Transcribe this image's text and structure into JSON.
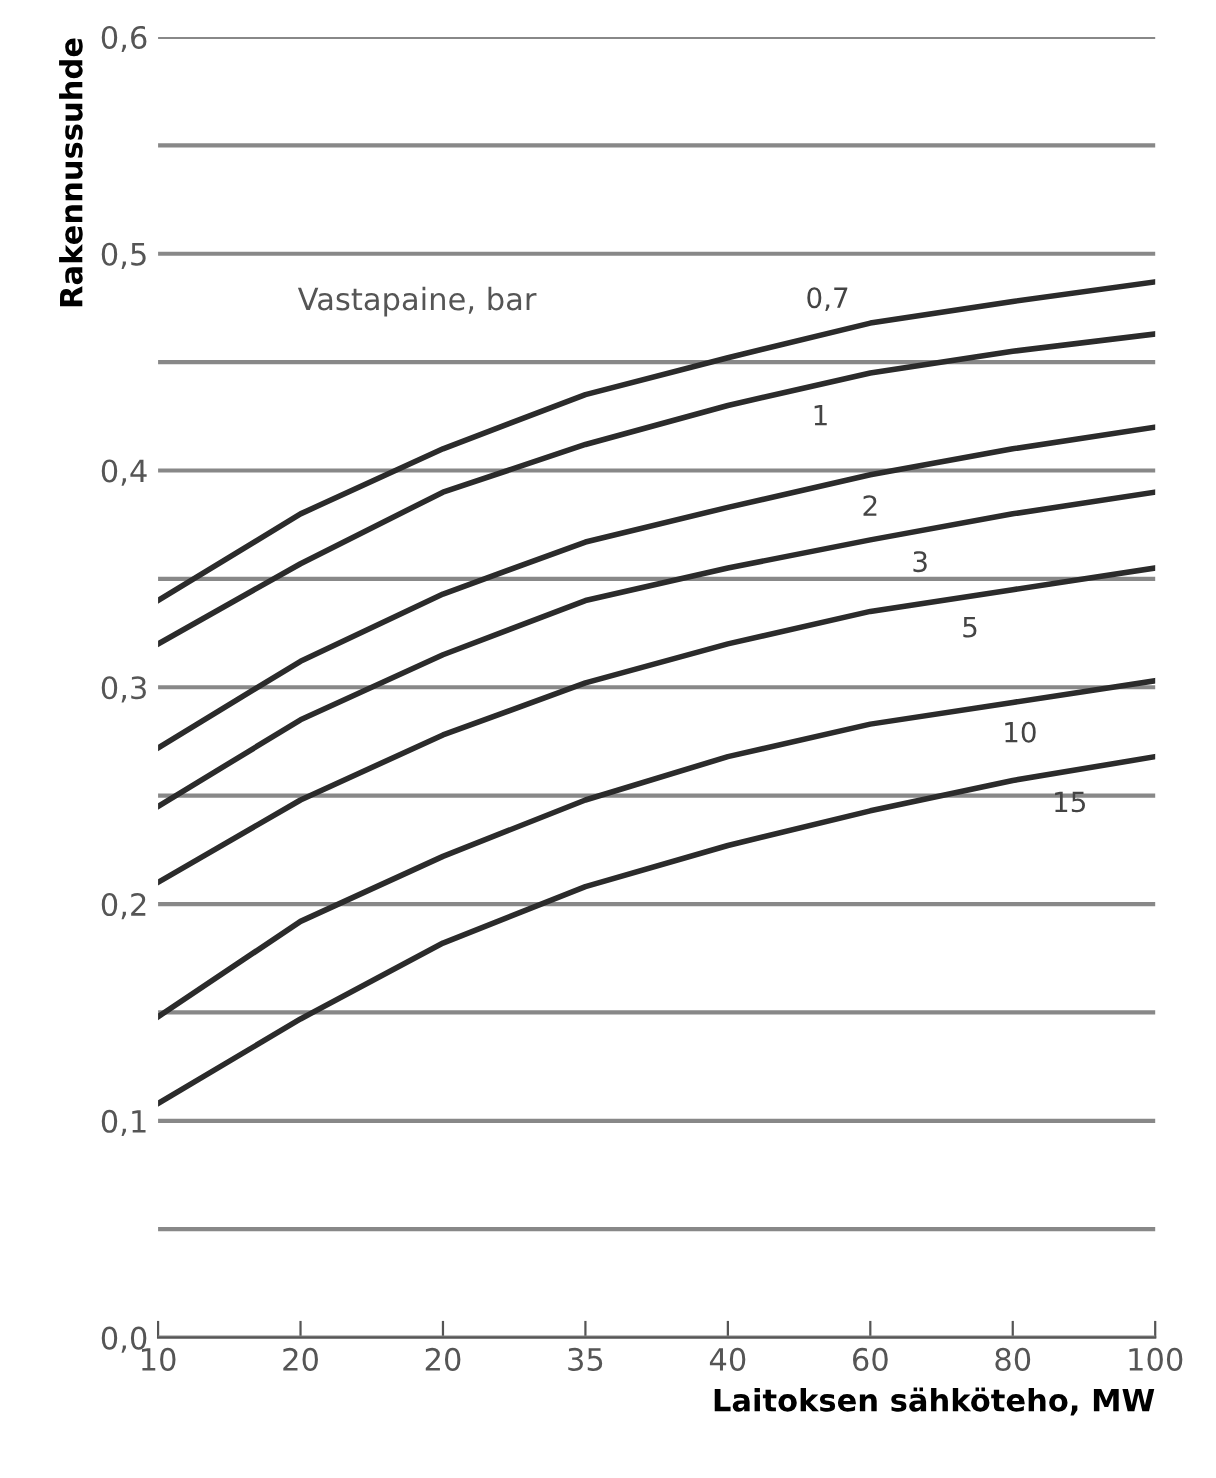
{
  "chart_data": {
    "type": "line",
    "xlabel": "Laitoksen sähköteho, MW",
    "ylabel": "Rakennussuhde",
    "annotations": [
      "Vastapaine, bar"
    ],
    "categories": [
      "10",
      "20",
      "20",
      "35",
      "40",
      "60",
      "80",
      "100"
    ],
    "ylim": [
      0,
      0.6
    ],
    "yticks": [
      {
        "value": 0,
        "label": "0,0"
      },
      {
        "value": 0.05,
        "label": null
      },
      {
        "value": 0.1,
        "label": "0,1"
      },
      {
        "value": 0.15,
        "label": null
      },
      {
        "value": 0.2,
        "label": "0,2"
      },
      {
        "value": 0.25,
        "label": null
      },
      {
        "value": 0.3,
        "label": "0,3"
      },
      {
        "value": 0.35,
        "label": null
      },
      {
        "value": 0.4,
        "label": "0,4"
      },
      {
        "value": 0.45,
        "label": null
      },
      {
        "value": 0.5,
        "label": "0,5"
      },
      {
        "value": 0.55,
        "label": null
      },
      {
        "value": 0.6,
        "label": "0,6"
      }
    ],
    "grid": "y",
    "legend": false,
    "marker": "none",
    "line_style": "solid",
    "series": [
      {
        "name": "0,7",
        "color": "#2b2b2b",
        "values": [
          0.34,
          0.38,
          0.41,
          0.435,
          0.452,
          0.468,
          0.478,
          0.487
        ]
      },
      {
        "name": "1",
        "color": "#2b2b2b",
        "values": [
          0.32,
          0.357,
          0.39,
          0.412,
          0.43,
          0.445,
          0.455,
          0.463
        ]
      },
      {
        "name": "2",
        "color": "#2b2b2b",
        "values": [
          0.272,
          0.312,
          0.343,
          0.367,
          0.383,
          0.398,
          0.41,
          0.42
        ]
      },
      {
        "name": "3",
        "color": "#2b2b2b",
        "values": [
          0.245,
          0.285,
          0.315,
          0.34,
          0.355,
          0.368,
          0.38,
          0.39
        ]
      },
      {
        "name": "5",
        "color": "#2b2b2b",
        "values": [
          0.21,
          0.248,
          0.278,
          0.302,
          0.32,
          0.335,
          0.345,
          0.355
        ]
      },
      {
        "name": "10",
        "color": "#2b2b2b",
        "values": [
          0.148,
          0.192,
          0.222,
          0.248,
          0.268,
          0.283,
          0.293,
          0.303
        ]
      },
      {
        "name": "15",
        "color": "#2b2b2b",
        "values": [
          0.108,
          0.147,
          0.182,
          0.208,
          0.227,
          0.243,
          0.257,
          0.268
        ]
      }
    ]
  }
}
